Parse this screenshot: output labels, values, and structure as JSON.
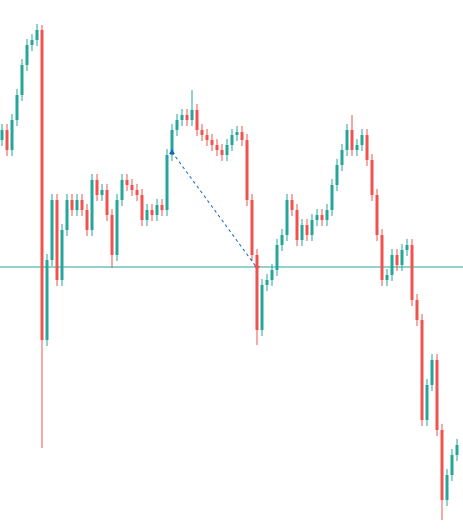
{
  "chart_data": {
    "type": "candlestick",
    "up_color": "#26a69a",
    "down_color": "#ef5350",
    "ylim": [
      0,
      530
    ],
    "open": [
      390,
      400,
      380,
      410,
      435,
      465,
      485,
      490,
      500,
      190,
      270,
      330,
      250,
      300,
      330,
      320,
      330,
      320,
      300,
      350,
      335,
      340,
      315,
      275,
      330,
      350,
      345,
      340,
      335,
      310,
      320,
      315,
      325,
      320,
      375,
      400,
      410,
      415,
      410,
      420,
      400,
      395,
      390,
      385,
      380,
      375,
      385,
      395,
      398,
      390,
      330,
      275,
      200,
      245,
      250,
      260,
      285,
      295,
      330,
      320,
      290,
      305,
      295,
      310,
      315,
      310,
      320,
      345,
      365,
      380,
      400,
      380,
      385,
      395,
      370,
      335,
      295,
      250,
      255,
      275,
      265,
      280,
      285,
      230,
      210,
      110,
      145,
      170,
      100,
      30,
      55,
      75
    ],
    "high": [
      406,
      406,
      416,
      441,
      471,
      491,
      496,
      506,
      505,
      276,
      336,
      336,
      306,
      336,
      336,
      336,
      336,
      326,
      356,
      356,
      346,
      346,
      321,
      336,
      356,
      356,
      351,
      346,
      341,
      326,
      326,
      331,
      331,
      381,
      406,
      416,
      421,
      421,
      440,
      426,
      406,
      401,
      396,
      391,
      386,
      391,
      401,
      404,
      404,
      396,
      336,
      281,
      251,
      256,
      266,
      291,
      301,
      336,
      336,
      326,
      311,
      311,
      316,
      321,
      321,
      326,
      351,
      371,
      386,
      406,
      415,
      391,
      401,
      401,
      376,
      341,
      301,
      261,
      281,
      281,
      286,
      291,
      291,
      236,
      216,
      151,
      176,
      176,
      106,
      61,
      81,
      91
    ],
    "low": [
      384,
      374,
      374,
      404,
      429,
      459,
      479,
      484,
      82,
      184,
      264,
      244,
      244,
      294,
      314,
      314,
      314,
      294,
      294,
      329,
      329,
      309,
      262,
      269,
      324,
      339,
      334,
      329,
      304,
      304,
      309,
      309,
      314,
      314,
      369,
      394,
      404,
      404,
      404,
      394,
      389,
      384,
      379,
      374,
      369,
      369,
      379,
      389,
      384,
      324,
      269,
      185,
      194,
      239,
      244,
      254,
      279,
      289,
      314,
      284,
      284,
      289,
      289,
      304,
      304,
      304,
      314,
      339,
      359,
      374,
      374,
      374,
      379,
      364,
      329,
      289,
      244,
      244,
      249,
      259,
      259,
      274,
      224,
      204,
      104,
      104,
      139,
      94,
      10,
      24,
      49,
      69
    ],
    "close": [
      400,
      380,
      410,
      435,
      465,
      485,
      490,
      500,
      190,
      270,
      330,
      250,
      300,
      330,
      320,
      330,
      320,
      300,
      350,
      335,
      340,
      315,
      275,
      330,
      350,
      345,
      340,
      335,
      310,
      320,
      315,
      325,
      320,
      375,
      400,
      410,
      415,
      410,
      420,
      400,
      395,
      390,
      385,
      380,
      375,
      385,
      395,
      398,
      390,
      330,
      275,
      200,
      245,
      250,
      260,
      285,
      295,
      330,
      320,
      290,
      305,
      295,
      310,
      315,
      310,
      320,
      345,
      365,
      380,
      400,
      380,
      385,
      395,
      370,
      335,
      295,
      250,
      255,
      275,
      265,
      280,
      285,
      230,
      210,
      110,
      145,
      170,
      100,
      30,
      55,
      75,
      85
    ],
    "price_line": {
      "value": 263,
      "color": "#26a69a"
    },
    "trade": {
      "entry_index": 34,
      "entry_value": 378,
      "exit_index": 51,
      "exit_value": 262,
      "color": "#1565c0"
    }
  }
}
